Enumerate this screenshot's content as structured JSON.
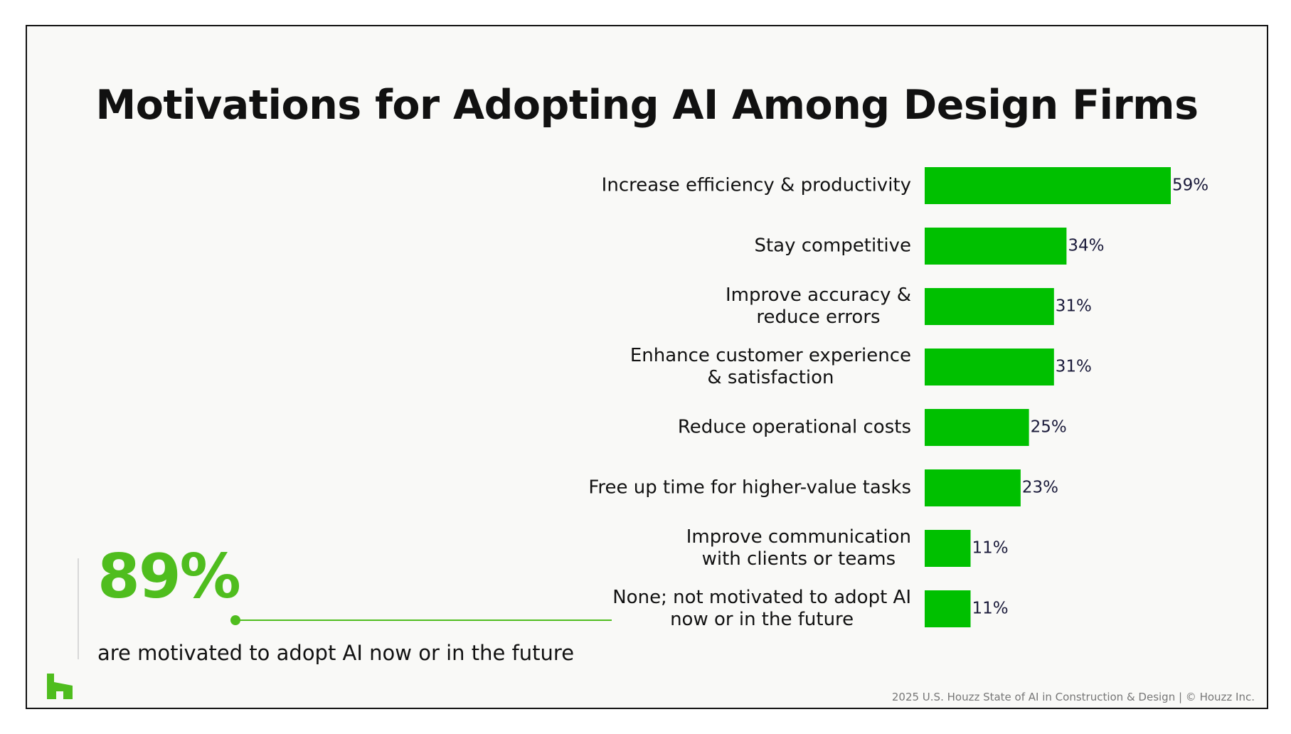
{
  "colors": {
    "bar": "#00c000",
    "accent": "#4fbd1e",
    "text": "#111111",
    "value_label": "#1a1a3a",
    "background": "#f9f9f7"
  },
  "callout": {
    "stat": "89%",
    "caption": "are motivated to adopt AI now or in the future"
  },
  "logo": {
    "icon": "houzz-logo-icon"
  },
  "footer": "2025 U.S. Houzz State of AI in Construction & Design | © Houzz Inc.",
  "chart_data": {
    "type": "bar",
    "orientation": "horizontal",
    "title": "Motivations for Adopting AI Among Design Firms",
    "xlabel": "",
    "ylabel": "",
    "xlim": [
      0,
      59
    ],
    "grid": false,
    "categories": [
      [
        "Increase efficiency & productivity"
      ],
      [
        "Stay competitive"
      ],
      [
        "Improve accuracy &",
        "reduce errors"
      ],
      [
        "Enhance customer experience",
        "& satisfaction"
      ],
      [
        "Reduce operational costs"
      ],
      [
        "Free up time for higher-value tasks"
      ],
      [
        "Improve communication",
        "with clients or teams"
      ],
      [
        "None; not motivated to adopt AI",
        "now or in the future"
      ]
    ],
    "values": [
      59,
      34,
      31,
      31,
      25,
      23,
      11,
      11
    ],
    "value_labels": [
      "59%",
      "34%",
      "31%",
      "31%",
      "25%",
      "23%",
      "11%",
      "11%"
    ]
  }
}
